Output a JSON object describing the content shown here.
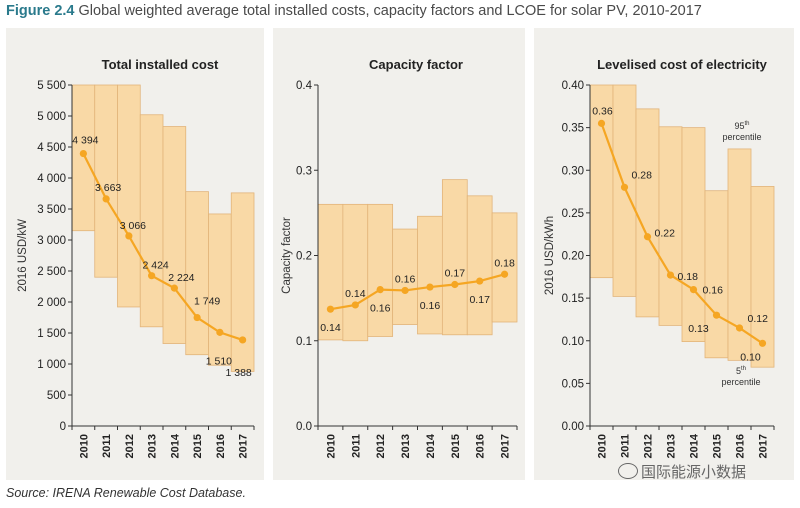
{
  "figure": {
    "label": "Figure 2.4",
    "title": "Global weighted average total installed costs, capacity factors and LCOE for solar PV, 2010-2017"
  },
  "source": "Source: IRENA Renewable Cost Database.",
  "watermark": "国际能源小数据",
  "colors": {
    "band_fill": "#f9d9a6",
    "band_stroke": "#e2b47a",
    "line": "#f5a623",
    "panel_bg": "#f1f0ec",
    "title_accent": "#2a7a8c"
  },
  "chart_data": [
    {
      "type": "line",
      "title": "Total installed cost",
      "ylabel": "2016 USD/kW",
      "ylim": [
        0,
        5500
      ],
      "yticks": [
        0,
        500,
        1000,
        1500,
        2000,
        2500,
        3000,
        3500,
        4000,
        4500,
        5000,
        5500
      ],
      "ytick_labels": [
        "0",
        "500",
        "1 000",
        "1 500",
        "2 000",
        "2 500",
        "3 000",
        "3 500",
        "4 000",
        "4 500",
        "5 000",
        "5 500"
      ],
      "categories": [
        "2010",
        "2011",
        "2012",
        "2013",
        "2014",
        "2015",
        "2016",
        "2017"
      ],
      "values": [
        4394,
        3663,
        3066,
        2424,
        2224,
        1749,
        1510,
        1388
      ],
      "value_labels": [
        "4 394",
        "3 663",
        "3 066",
        "2 424",
        "2 224",
        "1 749",
        "1 510",
        "1 388"
      ],
      "band_low": [
        3150,
        2400,
        1920,
        1600,
        1330,
        1150,
        980,
        880
      ],
      "band_high": [
        5500,
        5500,
        5500,
        5020,
        4830,
        3780,
        3420,
        3760
      ]
    },
    {
      "type": "line",
      "title": "Capacity factor",
      "ylabel": "Capacity factor",
      "ylim": [
        0,
        0.4
      ],
      "yticks": [
        0,
        0.1,
        0.2,
        0.3,
        0.4
      ],
      "ytick_labels": [
        "0.0",
        "0.1",
        "0.2",
        "0.3",
        "0.4"
      ],
      "categories": [
        "2010",
        "2011",
        "2012",
        "2013",
        "2014",
        "2015",
        "2016",
        "2017"
      ],
      "values": [
        0.137,
        0.142,
        0.16,
        0.159,
        0.163,
        0.166,
        0.17,
        0.178
      ],
      "value_labels": [
        "0.14",
        "0.14",
        "0.16",
        "0.16",
        "0.16",
        "0.17",
        "0.17",
        "0.18"
      ],
      "band_low": [
        0.101,
        0.1,
        0.105,
        0.119,
        0.108,
        0.107,
        0.107,
        0.122
      ],
      "band_high": [
        0.26,
        0.26,
        0.26,
        0.231,
        0.246,
        0.289,
        0.27,
        0.25
      ]
    },
    {
      "type": "line",
      "title": "Levelised cost of electricity",
      "ylabel": "2016 USD/kWh",
      "ylim": [
        0,
        0.4
      ],
      "yticks": [
        0,
        0.05,
        0.1,
        0.15,
        0.2,
        0.25,
        0.3,
        0.35,
        0.4
      ],
      "ytick_labels": [
        "0.00",
        "0.05",
        "0.10",
        "0.15",
        "0.20",
        "0.25",
        "0.30",
        "0.35",
        "0.40"
      ],
      "categories": [
        "2010",
        "2011",
        "2012",
        "2013",
        "2014",
        "2015",
        "2016",
        "2017"
      ],
      "values": [
        0.355,
        0.28,
        0.222,
        0.177,
        0.16,
        0.13,
        0.115,
        0.097
      ],
      "value_labels": [
        "0.36",
        "0.28",
        "0.22",
        "0.18",
        "0.16",
        "0.13",
        "0.12",
        "0.10"
      ],
      "band_low": [
        0.174,
        0.152,
        0.128,
        0.118,
        0.099,
        0.08,
        0.077,
        0.069
      ],
      "band_high": [
        0.4,
        0.4,
        0.372,
        0.351,
        0.35,
        0.276,
        0.325,
        0.281
      ],
      "annotations": [
        {
          "base": "95",
          "sup": "th",
          "rest": "percentile"
        },
        {
          "base": "5",
          "sup": "th",
          "rest": "percentile"
        }
      ]
    }
  ]
}
